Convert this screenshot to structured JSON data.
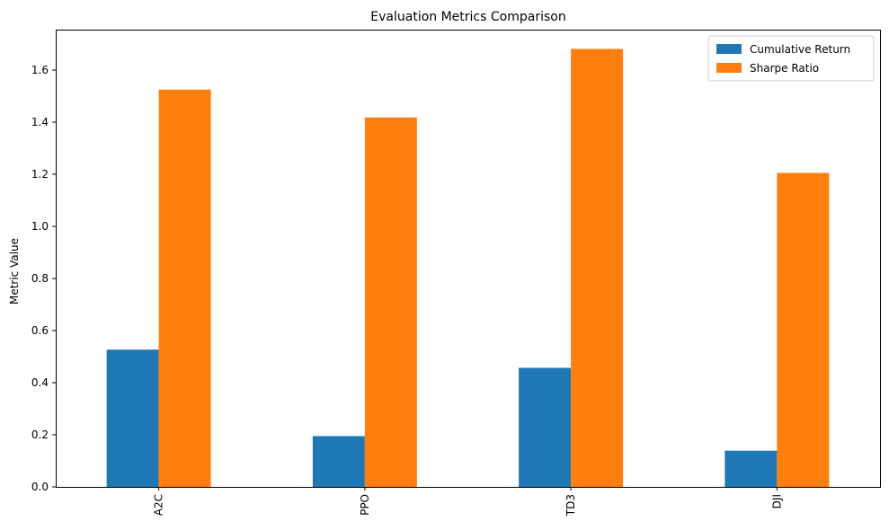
{
  "chart_data": {
    "type": "bar",
    "title": "Evaluation Metrics Comparison",
    "xlabel": "",
    "ylabel": "Metric Value",
    "categories": [
      "A2C",
      "PPO",
      "TD3",
      "DJI"
    ],
    "series": [
      {
        "name": "Cumulative Return",
        "color": "#1f77b4",
        "values": [
          0.527,
          0.195,
          0.457,
          0.139
        ]
      },
      {
        "name": "Sharpe Ratio",
        "color": "#ff7f0e",
        "values": [
          1.525,
          1.418,
          1.681,
          1.205
        ]
      }
    ],
    "ylim": [
      0,
      1.7
    ],
    "yticks": [
      0.0,
      0.2,
      0.4,
      0.6,
      0.8,
      1.0,
      1.2,
      1.4,
      1.6
    ],
    "ytick_labels": [
      "0.0",
      "0.2",
      "0.4",
      "0.6",
      "0.8",
      "1.0",
      "1.2",
      "1.4",
      "1.6"
    ],
    "grid": false,
    "legend_position": "top-right"
  }
}
